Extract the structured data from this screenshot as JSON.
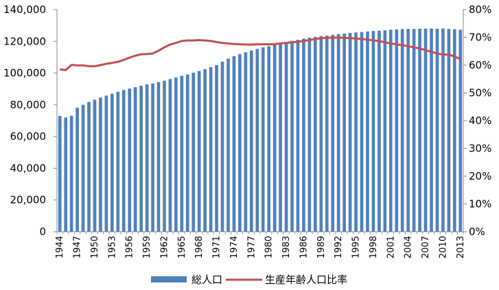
{
  "chart_data": {
    "type": "bar",
    "x": [
      1944,
      1945,
      1946,
      1947,
      1948,
      1949,
      1950,
      1951,
      1952,
      1953,
      1954,
      1955,
      1956,
      1957,
      1958,
      1959,
      1960,
      1961,
      1962,
      1963,
      1964,
      1965,
      1966,
      1967,
      1968,
      1969,
      1970,
      1971,
      1972,
      1973,
      1974,
      1975,
      1976,
      1977,
      1978,
      1979,
      1980,
      1981,
      1982,
      1983,
      1984,
      1985,
      1986,
      1987,
      1988,
      1989,
      1990,
      1991,
      1992,
      1993,
      1994,
      1995,
      1996,
      1997,
      1998,
      1999,
      2000,
      2001,
      2002,
      2003,
      2004,
      2005,
      2006,
      2007,
      2008,
      2009,
      2010,
      2011,
      2012,
      2013
    ],
    "x_tick_labels": [
      "1944",
      "1947",
      "1950",
      "1953",
      "1956",
      "1959",
      "1962",
      "1965",
      "1968",
      "1971",
      "1974",
      "1977",
      "1980",
      "1983",
      "1986",
      "1989",
      "1992",
      "1995",
      "1998",
      "2001",
      "2004",
      "2007",
      "2010",
      "2013"
    ],
    "series": [
      {
        "name": "総人口",
        "type": "bar",
        "axis": "left",
        "color": "#4f81bd",
        "values": [
          73000,
          72000,
          73100,
          78100,
          80000,
          81800,
          83200,
          84500,
          85800,
          87000,
          88200,
          89300,
          90200,
          91100,
          92000,
          92900,
          93400,
          94300,
          95200,
          96200,
          97200,
          98300,
          99100,
          100200,
          101300,
          102500,
          103700,
          105000,
          107200,
          109100,
          110600,
          112000,
          113100,
          114200,
          115200,
          116200,
          116900,
          117900,
          118700,
          119500,
          120300,
          121000,
          121700,
          122300,
          122800,
          123300,
          123600,
          124100,
          124600,
          124900,
          125300,
          125600,
          125900,
          126200,
          126500,
          126700,
          126900,
          127300,
          127500,
          127700,
          127800,
          127800,
          127900,
          128000,
          128100,
          128000,
          128100,
          127800,
          127600,
          127300
        ]
      },
      {
        "name": "生産年齢人口比率",
        "type": "line",
        "axis": "right",
        "color": "#c0504d",
        "values": [
          58.5,
          58.2,
          60.1,
          59.9,
          59.9,
          59.6,
          59.6,
          60.0,
          60.5,
          60.8,
          61.2,
          61.9,
          62.7,
          63.4,
          63.9,
          64.0,
          64.2,
          65.2,
          66.4,
          67.4,
          68.0,
          68.7,
          68.9,
          68.9,
          69.0,
          68.9,
          68.7,
          68.3,
          68.0,
          67.8,
          67.6,
          67.5,
          67.4,
          67.4,
          67.5,
          67.5,
          67.5,
          67.6,
          67.8,
          68.0,
          68.2,
          68.4,
          68.7,
          69.0,
          69.4,
          69.7,
          69.8,
          69.9,
          69.9,
          69.8,
          69.7,
          69.6,
          69.4,
          69.2,
          68.9,
          68.7,
          68.2,
          67.8,
          67.5,
          67.2,
          66.8,
          66.4,
          66.0,
          65.4,
          64.8,
          64.2,
          63.8,
          63.8,
          63.1,
          62.2
        ]
      }
    ],
    "y_left": {
      "min": 0,
      "max": 140000,
      "step": 20000,
      "tick_labels": [
        "0",
        "20,000",
        "40,000",
        "60,000",
        "80,000",
        "100,000",
        "120,000",
        "140,000"
      ]
    },
    "y_right": {
      "min": 0,
      "max": 80,
      "step": 10,
      "tick_labels": [
        "0%",
        "10%",
        "20%",
        "30%",
        "40%",
        "50%",
        "60%",
        "70%",
        "80%"
      ]
    },
    "grid": false,
    "legend_position": "bottom"
  }
}
